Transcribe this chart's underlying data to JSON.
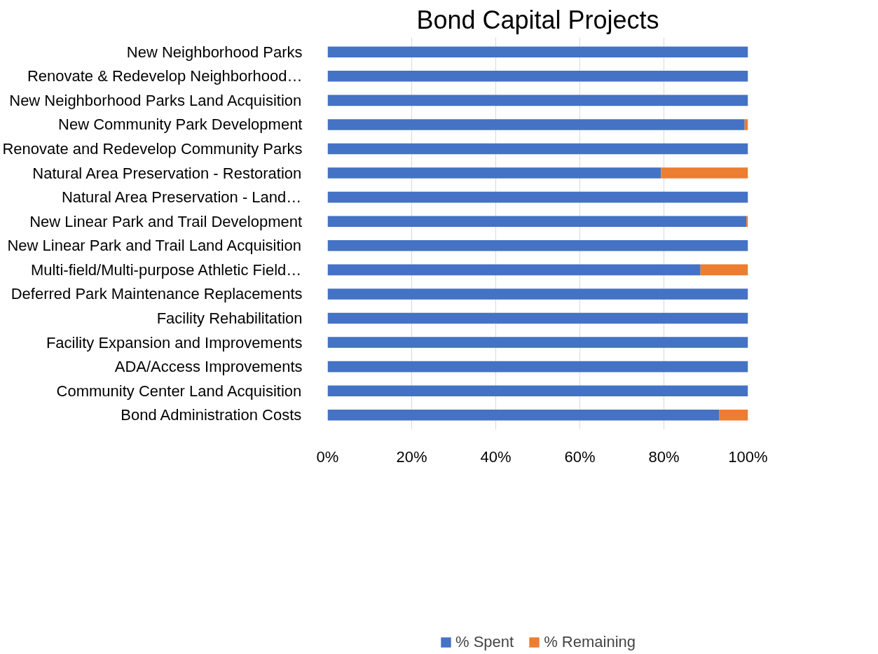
{
  "chart_data": {
    "type": "bar",
    "orientation": "horizontal",
    "stacked": true,
    "title": "Bond Capital Projects",
    "categories": [
      "New Neighborhood Parks",
      "Renovate & Redevelop Neighborhood…",
      "New Neighborhood Parks Land Acquisition",
      "New Community Park Development",
      "Renovate and Redevelop Community Parks",
      "Natural Area Preservation - Restoration",
      "Natural Area Preservation - Land…",
      "New Linear Park and Trail Development",
      "New Linear Park and Trail Land Acquisition",
      "Multi-field/Multi-purpose Athletic Field…",
      "Deferred Park Maintenance Replacements",
      "Facility Rehabilitation",
      "Facility Expansion and Improvements",
      "ADA/Access Improvements",
      "Community Center Land Acquisition",
      "Bond Administration Costs"
    ],
    "series": [
      {
        "name": "% Spent",
        "color": "#4472c4",
        "values": [
          100,
          100,
          100,
          99.2,
          100,
          79.3,
          100,
          99.6,
          100,
          88.7,
          100,
          100,
          100,
          100,
          100,
          93.1
        ]
      },
      {
        "name": "% Remaining",
        "color": "#ed7d31",
        "values": [
          0,
          0,
          0,
          0.8,
          0,
          20.7,
          0,
          0.4,
          0,
          11.3,
          0,
          0,
          0,
          0,
          0,
          6.9
        ]
      }
    ],
    "xlim": [
      0,
      100
    ],
    "xticks": [
      {
        "value": 0,
        "label": "0%"
      },
      {
        "value": 20,
        "label": "20%"
      },
      {
        "value": 40,
        "label": "40%"
      },
      {
        "value": 60,
        "label": "60%"
      },
      {
        "value": 80,
        "label": "80%"
      },
      {
        "value": 100,
        "label": "100%"
      }
    ],
    "grid": "x",
    "legend": "bottom"
  }
}
